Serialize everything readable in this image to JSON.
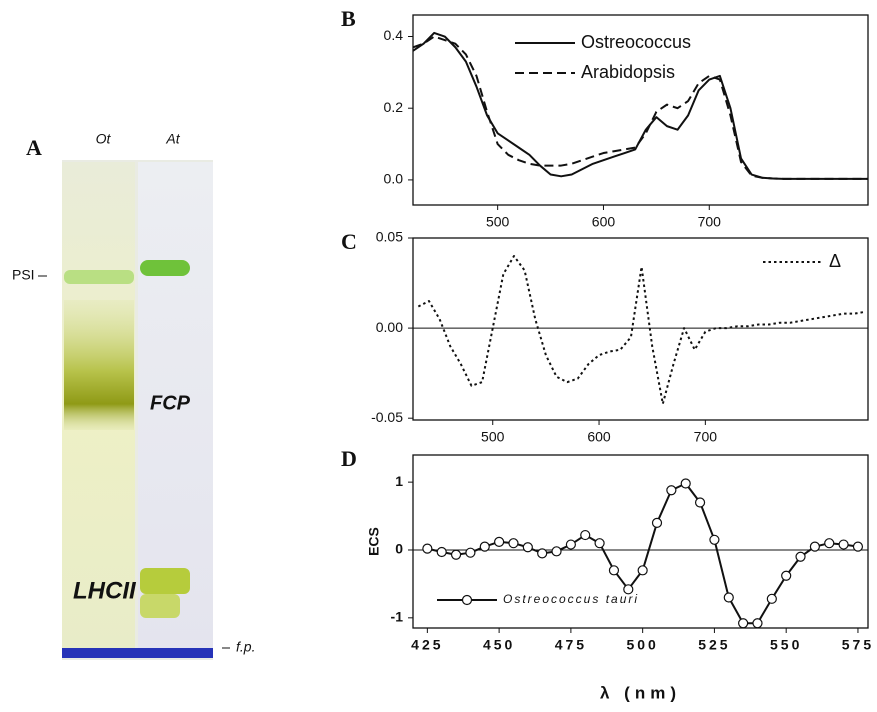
{
  "gel": {
    "panel": "A",
    "lanes": [
      "Ot",
      "At"
    ],
    "bands": [
      "PSI",
      "FCP",
      "LHCII"
    ],
    "front": "f.p."
  },
  "chart_data": [
    {
      "type": "line",
      "panel": "B",
      "x": [
        420,
        430,
        440,
        450,
        460,
        470,
        480,
        490,
        500,
        510,
        520,
        530,
        540,
        550,
        560,
        570,
        580,
        590,
        600,
        610,
        620,
        630,
        640,
        650,
        660,
        670,
        680,
        690,
        700,
        710,
        720,
        730,
        740,
        750,
        760,
        770,
        780,
        790,
        800,
        810,
        820,
        830,
        840,
        850
      ],
      "series": [
        {
          "name": "Ostreococcus",
          "color": "#111111",
          "line_style": "solid",
          "values": [
            0.36,
            0.38,
            0.41,
            0.4,
            0.37,
            0.33,
            0.26,
            0.18,
            0.13,
            0.11,
            0.09,
            0.07,
            0.04,
            0.015,
            0.01,
            0.015,
            0.03,
            0.045,
            0.055,
            0.065,
            0.075,
            0.085,
            0.14,
            0.175,
            0.15,
            0.14,
            0.18,
            0.25,
            0.28,
            0.29,
            0.2,
            0.06,
            0.015,
            0.006,
            0.004,
            0.003,
            0.003,
            0.003,
            0.003,
            0.003,
            0.003,
            0.003,
            0.003,
            0.003
          ]
        },
        {
          "name": "Arabidopsis",
          "color": "#111111",
          "line_style": "dashed",
          "values": [
            0.37,
            0.38,
            0.4,
            0.39,
            0.38,
            0.35,
            0.29,
            0.19,
            0.1,
            0.07,
            0.055,
            0.045,
            0.04,
            0.04,
            0.04,
            0.045,
            0.055,
            0.065,
            0.075,
            0.08,
            0.085,
            0.09,
            0.13,
            0.19,
            0.21,
            0.2,
            0.22,
            0.27,
            0.29,
            0.28,
            0.18,
            0.05,
            0.012,
            0.006,
            0.004,
            0.003,
            0.003,
            0.003,
            0.003,
            0.003,
            0.003,
            0.003,
            0.003,
            0.003
          ]
        }
      ],
      "xlim": [
        420,
        850
      ],
      "ylim": [
        -0.07,
        0.46
      ],
      "xticks": [
        500,
        600,
        700
      ],
      "yticks": [
        {
          "value": 0,
          "label": "0.0"
        },
        0.2,
        0.4
      ],
      "legend": "top"
    },
    {
      "type": "line",
      "panel": "C",
      "x": [
        430,
        440,
        450,
        460,
        470,
        480,
        490,
        500,
        510,
        520,
        530,
        540,
        550,
        560,
        570,
        580,
        590,
        600,
        610,
        620,
        630,
        640,
        650,
        660,
        670,
        680,
        690,
        700,
        710,
        720,
        730,
        740,
        750,
        760,
        770,
        780,
        790,
        800,
        810,
        820,
        830,
        840,
        850
      ],
      "series": [
        {
          "name": "Δ",
          "color": "#111111",
          "line_style": "dotted",
          "values": [
            0.012,
            0.015,
            0.005,
            -0.01,
            -0.02,
            -0.032,
            -0.03,
            0,
            0.03,
            0.04,
            0.032,
            0.005,
            -0.015,
            -0.027,
            -0.03,
            -0.028,
            -0.02,
            -0.015,
            -0.013,
            -0.012,
            -0.005,
            0.034,
            -0.01,
            -0.042,
            -0.02,
            0,
            -0.012,
            -0.002,
            0,
            0,
            0.001,
            0.001,
            0.002,
            0.002,
            0.003,
            0.003,
            0.004,
            0.005,
            0.006,
            0.007,
            0.008,
            0.008,
            0.009
          ]
        }
      ],
      "xlim": [
        425,
        853
      ],
      "ylim": [
        -0.051,
        0.05
      ],
      "xticks": [
        500,
        600,
        700
      ],
      "yticks": [
        -0.05,
        {
          "value": 0,
          "label": "0.00"
        },
        0.05
      ],
      "zero_line": true,
      "legend": "top-right"
    },
    {
      "type": "line",
      "panel": "D",
      "xlabel": "λ (nm)",
      "ylabel": "ECS",
      "x": [
        425,
        430,
        435,
        440,
        445,
        450,
        455,
        460,
        465,
        470,
        475,
        480,
        485,
        490,
        495,
        500,
        505,
        510,
        515,
        520,
        525,
        530,
        535,
        540,
        545,
        550,
        555,
        560,
        565,
        570,
        575
      ],
      "series": [
        {
          "name": "Ostreococcus tauri",
          "color": "#111111",
          "line_style": "solid",
          "marker": "circle",
          "values": [
            0.02,
            -0.03,
            -0.07,
            -0.04,
            0.05,
            0.12,
            0.1,
            0.04,
            -0.05,
            -0.02,
            0.08,
            0.22,
            0.1,
            -0.3,
            -0.58,
            -0.3,
            0.4,
            0.88,
            0.98,
            0.7,
            0.15,
            -0.7,
            -1.08,
            -1.08,
            -0.72,
            -0.38,
            -0.1,
            0.05,
            0.1,
            0.08,
            0.05
          ]
        }
      ],
      "xlim": [
        420,
        578.5
      ],
      "ylim": [
        -1.15,
        1.4
      ],
      "xticks": [
        425,
        450,
        475,
        500,
        525,
        550,
        575
      ],
      "yticks": [
        -1,
        0,
        1
      ],
      "zero_line": true,
      "legend": "bottom-left"
    }
  ]
}
